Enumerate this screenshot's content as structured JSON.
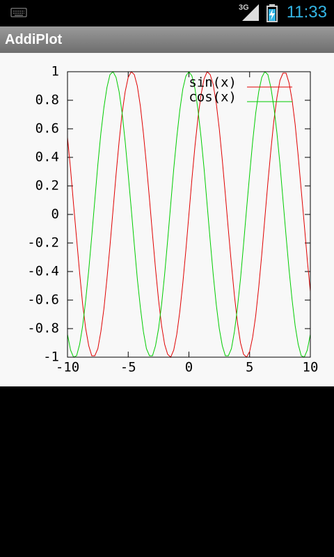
{
  "status_bar": {
    "network": "3G",
    "time": "11:33"
  },
  "app_bar": {
    "title": "AddiPlot"
  },
  "chart_data": {
    "type": "line",
    "x": [
      -10,
      -9.75,
      -9.5,
      -9.25,
      -9,
      -8.75,
      -8.5,
      -8.25,
      -8,
      -7.75,
      -7.5,
      -7.25,
      -7,
      -6.75,
      -6.5,
      -6.25,
      -6,
      -5.75,
      -5.5,
      -5.25,
      -5,
      -4.75,
      -4.5,
      -4.25,
      -4,
      -3.75,
      -3.5,
      -3.25,
      -3,
      -2.75,
      -2.5,
      -2.25,
      -2,
      -1.75,
      -1.5,
      -1.25,
      -1,
      -0.75,
      -0.5,
      -0.25,
      0,
      0.25,
      0.5,
      0.75,
      1,
      1.25,
      1.5,
      1.75,
      2,
      2.25,
      2.5,
      2.75,
      3,
      3.25,
      3.5,
      3.75,
      4,
      4.25,
      4.5,
      4.75,
      5,
      5.25,
      5.5,
      5.75,
      6,
      6.25,
      6.5,
      6.75,
      7,
      7.25,
      7.5,
      7.75,
      8,
      8.25,
      8.5,
      8.75,
      9,
      9.25,
      9.5,
      9.75,
      10
    ],
    "series": [
      {
        "name": "sin(x)",
        "color": "#e00000",
        "values": [
          0.54,
          0.32,
          0.07,
          -0.17,
          -0.41,
          -0.63,
          -0.8,
          -0.92,
          -0.99,
          -0.99,
          -0.94,
          -0.82,
          -0.66,
          -0.45,
          -0.22,
          0.03,
          0.28,
          0.51,
          0.71,
          0.86,
          0.96,
          1,
          0.98,
          0.9,
          0.76,
          0.57,
          0.35,
          0.11,
          -0.14,
          -0.38,
          -0.6,
          -0.78,
          -0.91,
          -0.98,
          -1,
          -0.95,
          -0.84,
          -0.68,
          -0.48,
          -0.25,
          0,
          0.25,
          0.48,
          0.68,
          0.84,
          0.95,
          1,
          0.98,
          0.91,
          0.78,
          0.6,
          0.38,
          0.14,
          -0.11,
          -0.35,
          -0.57,
          -0.76,
          -0.9,
          -0.98,
          -1,
          -0.96,
          -0.86,
          -0.71,
          -0.51,
          -0.28,
          -0.03,
          0.22,
          0.45,
          0.66,
          0.82,
          0.94,
          0.99,
          0.99,
          0.92,
          0.8,
          0.63,
          0.41,
          0.17,
          -0.07,
          -0.32,
          -0.54
        ]
      },
      {
        "name": "cos(x)",
        "color": "#00cc00",
        "values": [
          -0.84,
          -0.95,
          -1,
          -0.99,
          -0.91,
          -0.78,
          -0.6,
          -0.39,
          -0.15,
          0.1,
          0.35,
          0.57,
          0.75,
          0.89,
          0.98,
          1,
          0.96,
          0.86,
          0.71,
          0.51,
          0.28,
          0.04,
          -0.21,
          -0.45,
          -0.65,
          -0.82,
          -0.94,
          -0.99,
          -0.99,
          -0.92,
          -0.8,
          -0.63,
          -0.42,
          -0.18,
          0.07,
          0.32,
          0.54,
          0.73,
          0.88,
          0.97,
          1,
          0.97,
          0.88,
          0.73,
          0.54,
          0.32,
          0.07,
          -0.18,
          -0.42,
          -0.63,
          -0.8,
          -0.92,
          -0.99,
          -0.99,
          -0.94,
          -0.82,
          -0.65,
          -0.45,
          -0.21,
          0.04,
          0.28,
          0.51,
          0.71,
          0.86,
          0.96,
          1,
          0.98,
          0.89,
          0.75,
          0.57,
          0.35,
          0.1,
          -0.15,
          -0.39,
          -0.6,
          -0.78,
          -0.91,
          -0.99,
          -1,
          -0.95,
          -0.84
        ]
      }
    ],
    "xlim": [
      -10,
      10
    ],
    "xticks": [
      -10,
      -5,
      0,
      5,
      10
    ],
    "ylim": [
      -1,
      1
    ],
    "yticks": [
      -1,
      -0.8,
      -0.6,
      -0.4,
      -0.2,
      0,
      0.2,
      0.4,
      0.6,
      0.8,
      1
    ],
    "legend": "top-right"
  }
}
